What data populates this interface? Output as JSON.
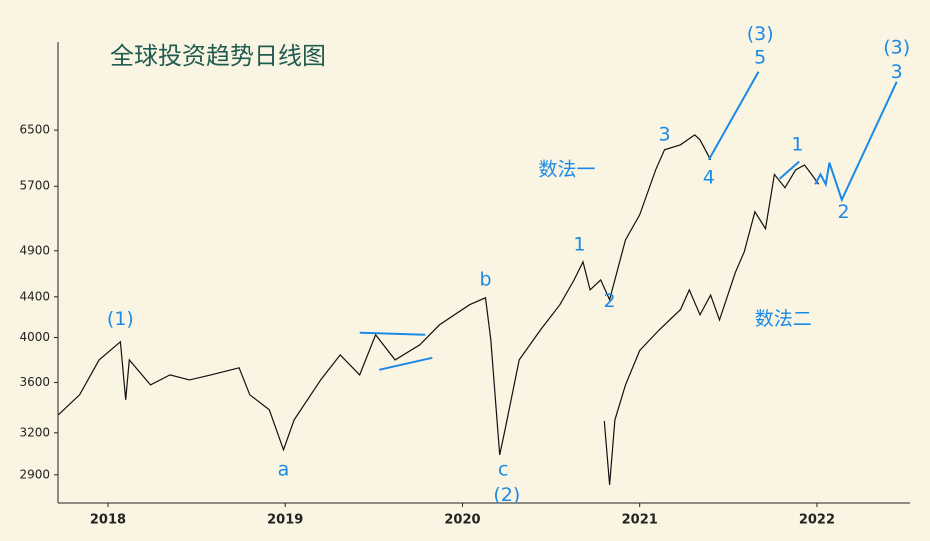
{
  "chart_data": {
    "type": "line",
    "title": "全球投资趋势日线图",
    "log_scale": true,
    "xlim": [
      2017.718,
      2022.525
    ],
    "ylim": [
      2715,
      7990
    ],
    "xticks": [
      2018,
      2019,
      2020,
      2021,
      2022
    ],
    "yticks": [
      2900,
      3200,
      3600,
      4000,
      4400,
      4900,
      5700,
      6500
    ],
    "series": [
      {
        "color": "#111111",
        "x": [
          2017.72,
          2017.84,
          2017.95,
          2018.07,
          2018.1,
          2018.12,
          2018.24,
          2018.35,
          2018.46,
          2018.58,
          2018.74,
          2018.8,
          2018.91,
          2018.99,
          2019.05,
          2019.2,
          2019.31,
          2019.42,
          2019.51,
          2019.62,
          2019.76,
          2019.87,
          2020.04,
          2020.13,
          2020.16,
          2020.21,
          2020.24,
          2020.32,
          2020.44,
          2020.55,
          2020.63,
          2020.68,
          2020.72,
          2020.78,
          2020.83,
          2020.92,
          2021.0,
          2021.09,
          2021.14,
          2021.23,
          2021.31,
          2021.34,
          2021.4
        ],
        "values": [
          3338,
          3498,
          3796,
          3960,
          3457,
          3796,
          3580,
          3665,
          3622,
          3665,
          3726,
          3498,
          3377,
          3075,
          3298,
          3622,
          3840,
          3665,
          4025,
          3796,
          3932,
          4120,
          4319,
          4390,
          3979,
          3039,
          3222,
          3796,
          4072,
          4319,
          4578,
          4776,
          4472,
          4578,
          4370,
          5028,
          5331,
          5924,
          6208,
          6281,
          6428,
          6355,
          6064
        ]
      },
      {
        "color": "#111111",
        "x": [
          2020.8,
          2020.83,
          2020.86,
          2020.92,
          2021.0,
          2021.11,
          2021.23,
          2021.28,
          2021.34,
          2021.4,
          2021.45,
          2021.54,
          2021.59,
          2021.65,
          2021.71,
          2021.76,
          2021.82,
          2021.88,
          2021.93,
          2021.97,
          2022.01
        ],
        "values": [
          3290,
          2833,
          3298,
          3580,
          3880,
          4072,
          4270,
          4472,
          4218,
          4418,
          4168,
          4660,
          4890,
          5370,
          5160,
          5860,
          5680,
          5924,
          5990,
          5860,
          5726
        ]
      }
    ],
    "annotation_lines": [
      {
        "color": "#1a8ae6",
        "x": [
          2021.39,
          2021.67
        ],
        "values": [
          6064,
          7453
        ]
      },
      {
        "color": "#1a8ae6",
        "x": [
          2021.99,
          2022.02,
          2022.05,
          2022.07,
          2022.14,
          2022.45
        ],
        "values": [
          5726,
          5860,
          5726,
          6023,
          5522,
          7279
        ]
      },
      {
        "color": "#1a8ae6",
        "x": [
          2019.42,
          2019.79
        ],
        "values": [
          4045,
          4025
        ]
      },
      {
        "color": "#1a8ae6",
        "x": [
          2019.53,
          2019.83
        ],
        "values": [
          3709,
          3814
        ]
      },
      {
        "color": "#1a8ae6",
        "x": [
          2021.79,
          2021.9
        ],
        "values": [
          5800,
          6040
        ]
      }
    ],
    "annotations": [
      {
        "text": "(1)",
        "x": 2018.07,
        "y": 4170
      },
      {
        "text": "a",
        "x": 2018.99,
        "y": 2934
      },
      {
        "text": "b",
        "x": 2020.13,
        "y": 4578
      },
      {
        "text": "c",
        "x": 2020.23,
        "y": 2934
      },
      {
        "text": "(2)",
        "x": 2020.25,
        "y": 2764
      },
      {
        "text": "1",
        "x": 2020.66,
        "y": 4970
      },
      {
        "text": "2",
        "x": 2020.83,
        "y": 4350
      },
      {
        "text": "3",
        "x": 2021.14,
        "y": 6430
      },
      {
        "text": "4",
        "x": 2021.39,
        "y": 5814
      },
      {
        "text": "(3)",
        "x": 2021.68,
        "y": 8127
      },
      {
        "text": "5",
        "x": 2021.68,
        "y": 7700
      },
      {
        "text": "1",
        "x": 2021.89,
        "y": 6281
      },
      {
        "text": "2",
        "x": 2022.15,
        "y": 5357
      },
      {
        "text": "(3)",
        "x": 2022.45,
        "y": 7883
      },
      {
        "text": "3",
        "x": 2022.45,
        "y": 7435
      },
      {
        "text": "数法一",
        "x": 2020.59,
        "y": 5924
      },
      {
        "text": "数法二",
        "x": 2021.81,
        "y": 4170
      }
    ]
  }
}
